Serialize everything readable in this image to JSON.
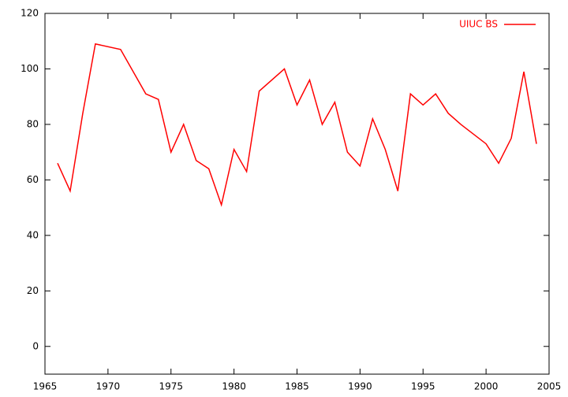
{
  "chart_data": {
    "type": "line",
    "x": [
      1966,
      1967,
      1968,
      1969,
      1971,
      1973,
      1974,
      1975,
      1976,
      1977,
      1978,
      1979,
      1980,
      1981,
      1982,
      1984,
      1985,
      1986,
      1987,
      1988,
      1989,
      1990,
      1991,
      1992,
      1993,
      1994,
      1995,
      1996,
      1997,
      1998,
      2000,
      2001,
      2002,
      2003,
      2004
    ],
    "series": [
      {
        "name": "UIUC BS",
        "color": "#ff0000",
        "values": [
          66,
          56,
          84,
          109,
          107,
          91,
          89,
          70,
          80,
          67,
          64,
          51,
          71,
          63,
          92,
          100,
          87,
          96,
          80,
          88,
          70,
          65,
          82,
          71,
          56,
          91,
          87,
          91,
          84,
          80,
          73,
          66,
          75,
          99,
          73
        ]
      }
    ],
    "xlim": [
      1965,
      2005
    ],
    "xticks": [
      1965,
      1970,
      1975,
      1980,
      1985,
      1990,
      1995,
      2000,
      2005
    ],
    "ylim": [
      -10,
      120
    ],
    "yticks": [
      0,
      20,
      40,
      60,
      80,
      100,
      120
    ],
    "legend": "top-right"
  }
}
